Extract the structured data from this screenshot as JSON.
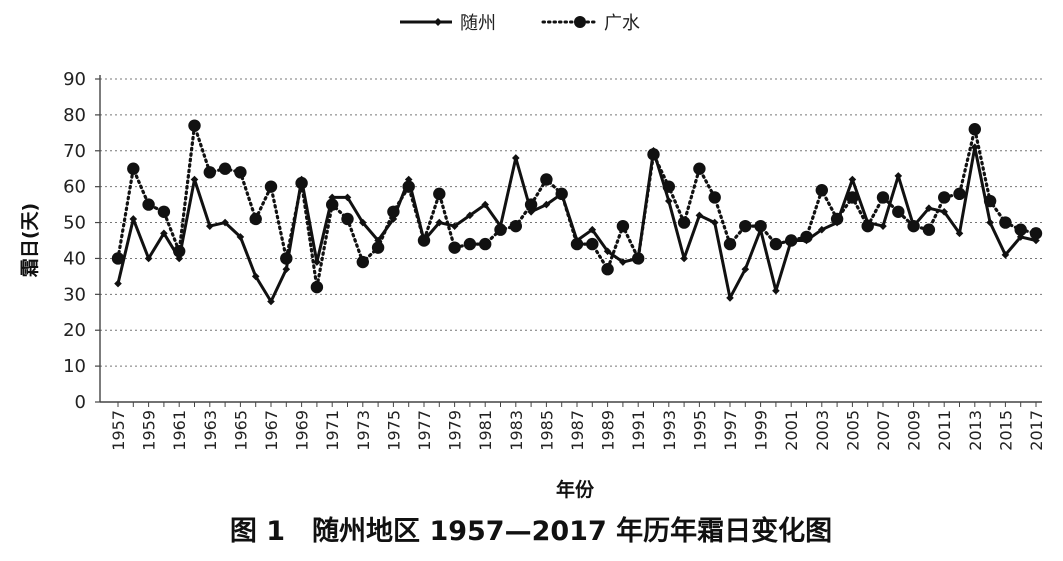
{
  "chart_data": {
    "type": "line",
    "title": "图 1　随州地区 1957—2017 年历年霜日变化图",
    "xlabel": "年份",
    "ylabel": "霜日(天)",
    "ylim": [
      0,
      90
    ],
    "yticks": [
      0,
      10,
      20,
      30,
      40,
      50,
      60,
      70,
      80,
      90
    ],
    "grid": true,
    "legend_position": "top-center",
    "x": [
      1957,
      1958,
      1959,
      1960,
      1961,
      1962,
      1963,
      1964,
      1965,
      1966,
      1967,
      1968,
      1969,
      1970,
      1971,
      1972,
      1973,
      1974,
      1975,
      1976,
      1977,
      1978,
      1979,
      1980,
      1981,
      1982,
      1983,
      1984,
      1985,
      1986,
      1987,
      1988,
      1989,
      1990,
      1991,
      1992,
      1993,
      1994,
      1995,
      1996,
      1997,
      1998,
      1999,
      2000,
      2001,
      2002,
      2003,
      2004,
      2005,
      2006,
      2007,
      2008,
      2009,
      2010,
      2011,
      2012,
      2013,
      2014,
      2015,
      2016,
      2017
    ],
    "xtick_labels": [
      "1957",
      "1959",
      "1961",
      "1963",
      "1965",
      "1967",
      "1969",
      "1971",
      "1973",
      "1975",
      "1977",
      "1979",
      "1981",
      "1983",
      "1985",
      "1987",
      "1989",
      "1991",
      "1993",
      "1995",
      "1997",
      "1999",
      "2001",
      "2003",
      "2005",
      "2007",
      "2009",
      "2011",
      "2013",
      "2015",
      "2017"
    ],
    "series": [
      {
        "name": "随州",
        "style": "solid",
        "marker": "diamond",
        "color": "#111111",
        "values": [
          33,
          51,
          40,
          47,
          40,
          62,
          49,
          50,
          46,
          35,
          28,
          37,
          62,
          39,
          57,
          57,
          50,
          45,
          51,
          62,
          45,
          50,
          49,
          52,
          55,
          49,
          68,
          53,
          55,
          58,
          45,
          48,
          42,
          39,
          40,
          70,
          56,
          40,
          52,
          50,
          29,
          37,
          48,
          31,
          45,
          45,
          48,
          50,
          62,
          50,
          49,
          63,
          49,
          54,
          53,
          47,
          71,
          50,
          41,
          46,
          45
        ]
      },
      {
        "name": "广水",
        "style": "dotted",
        "marker": "circle",
        "color": "#111111",
        "values": [
          40,
          65,
          55,
          53,
          42,
          77,
          64,
          65,
          64,
          51,
          60,
          40,
          61,
          32,
          55,
          51,
          39,
          43,
          53,
          60,
          45,
          58,
          43,
          44,
          44,
          48,
          49,
          55,
          62,
          58,
          44,
          44,
          37,
          49,
          40,
          69,
          60,
          50,
          65,
          57,
          44,
          49,
          49,
          44,
          45,
          46,
          59,
          51,
          57,
          49,
          57,
          53,
          49,
          48,
          57,
          58,
          76,
          56,
          50,
          48,
          47
        ]
      }
    ]
  }
}
